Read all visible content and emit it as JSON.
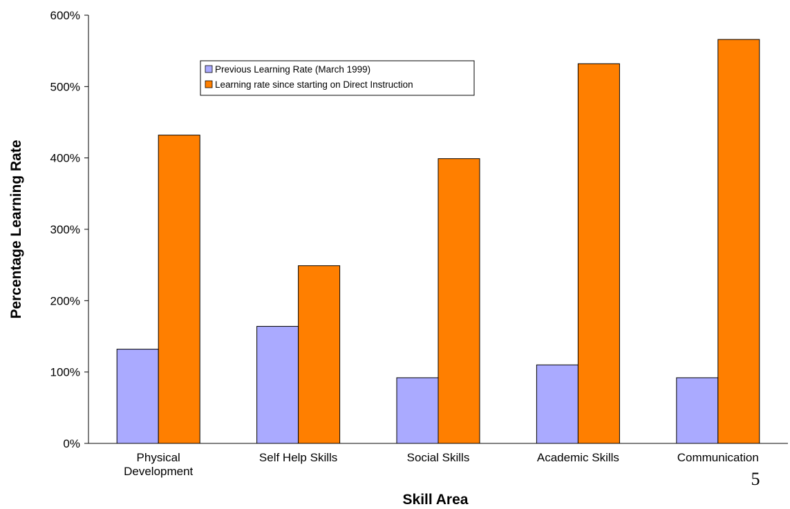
{
  "chart_data": {
    "type": "bar",
    "title": "",
    "xlabel": "Skill Area",
    "ylabel": "Percentage Learning Rate",
    "categories": [
      [
        "Physical",
        "Development"
      ],
      [
        "Self Help Skills"
      ],
      [
        "Social Skills"
      ],
      [
        "Academic Skills"
      ],
      [
        "Communication"
      ]
    ],
    "series": [
      {
        "name": "Previous Learning Rate (March 1999)",
        "color": "#aaaaff",
        "values": [
          132,
          164,
          92,
          110,
          92
        ]
      },
      {
        "name": "Learning rate since starting on Direct Instruction",
        "color": "#ff7f00",
        "values": [
          432,
          249,
          399,
          532,
          566
        ]
      }
    ],
    "yticks": [
      "0%",
      "100%",
      "200%",
      "300%",
      "400%",
      "500%",
      "600%"
    ],
    "ylim": [
      0,
      600
    ],
    "grid": false,
    "legend_position": "top-left inside plot"
  },
  "page_number": "5"
}
